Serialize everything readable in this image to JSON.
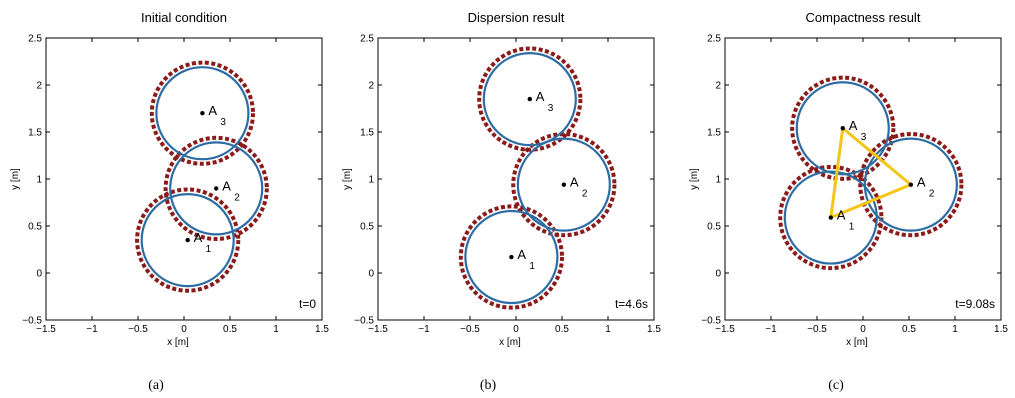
{
  "chart_data": [
    {
      "type": "scatter",
      "panel_caption": "(a)",
      "title": "Initial condition",
      "xlabel": "x [m]",
      "ylabel": "y [m]",
      "xlim": [
        -1.5,
        1.5
      ],
      "ylim": [
        -0.5,
        2.5
      ],
      "xticks": [
        "−1.5",
        "−1",
        "−0.5",
        "0",
        "0.5",
        "1",
        "1.5"
      ],
      "yticks": [
        "−0.5",
        "0",
        "0.5",
        "1",
        "1.5",
        "2",
        "2.5"
      ],
      "time_label": "t=0",
      "circle_radius": 0.5,
      "dashed_radius": 0.55,
      "agents": [
        {
          "label": "A",
          "sub": "1",
          "x": 0.04,
          "y": 0.35
        },
        {
          "label": "A",
          "sub": "2",
          "x": 0.35,
          "y": 0.9
        },
        {
          "label": "A",
          "sub": "3",
          "x": 0.2,
          "y": 1.7
        }
      ],
      "links": []
    },
    {
      "type": "scatter",
      "panel_caption": "(b)",
      "title": "Dispersion result",
      "xlabel": "x [m]",
      "ylabel": "y [m]",
      "xlim": [
        -1.5,
        1.5
      ],
      "ylim": [
        -0.5,
        2.5
      ],
      "xticks": [
        "−1.5",
        "−1",
        "−0.5",
        "0",
        "0.5",
        "1",
        "1.5"
      ],
      "yticks": [
        "−0.5",
        "0",
        "0.5",
        "1",
        "1.5",
        "2",
        "2.5"
      ],
      "time_label": "t=4.6s",
      "circle_radius": 0.5,
      "dashed_radius": 0.55,
      "agents": [
        {
          "label": "A",
          "sub": "1",
          "x": -0.05,
          "y": 0.17
        },
        {
          "label": "A",
          "sub": "2",
          "x": 0.52,
          "y": 0.94
        },
        {
          "label": "A",
          "sub": "3",
          "x": 0.15,
          "y": 1.85
        }
      ],
      "links": []
    },
    {
      "type": "scatter",
      "panel_caption": "(c)",
      "title": "Compactness result",
      "xlabel": "x [m]",
      "ylabel": "y [m]",
      "xlim": [
        -1.5,
        1.5
      ],
      "ylim": [
        -0.5,
        2.5
      ],
      "xticks": [
        "−1.5",
        "−1",
        "−0.5",
        "0",
        "0.5",
        "1",
        "1.5"
      ],
      "yticks": [
        "−0.5",
        "0",
        "0.5",
        "1",
        "1.5",
        "2",
        "2.5"
      ],
      "time_label": "t=9.08s",
      "circle_radius": 0.5,
      "dashed_radius": 0.55,
      "agents": [
        {
          "label": "A",
          "sub": "1",
          "x": -0.35,
          "y": 0.59
        },
        {
          "label": "A",
          "sub": "2",
          "x": 0.52,
          "y": 0.94
        },
        {
          "label": "A",
          "sub": "3",
          "x": -0.22,
          "y": 1.54
        }
      ],
      "links": [
        [
          0,
          1
        ],
        [
          1,
          2
        ],
        [
          2,
          0
        ]
      ]
    }
  ],
  "colors": {
    "circle": "#2e6da4",
    "dashed": "#8b1a1a",
    "link": "#f5c518",
    "axes": "#000000"
  }
}
